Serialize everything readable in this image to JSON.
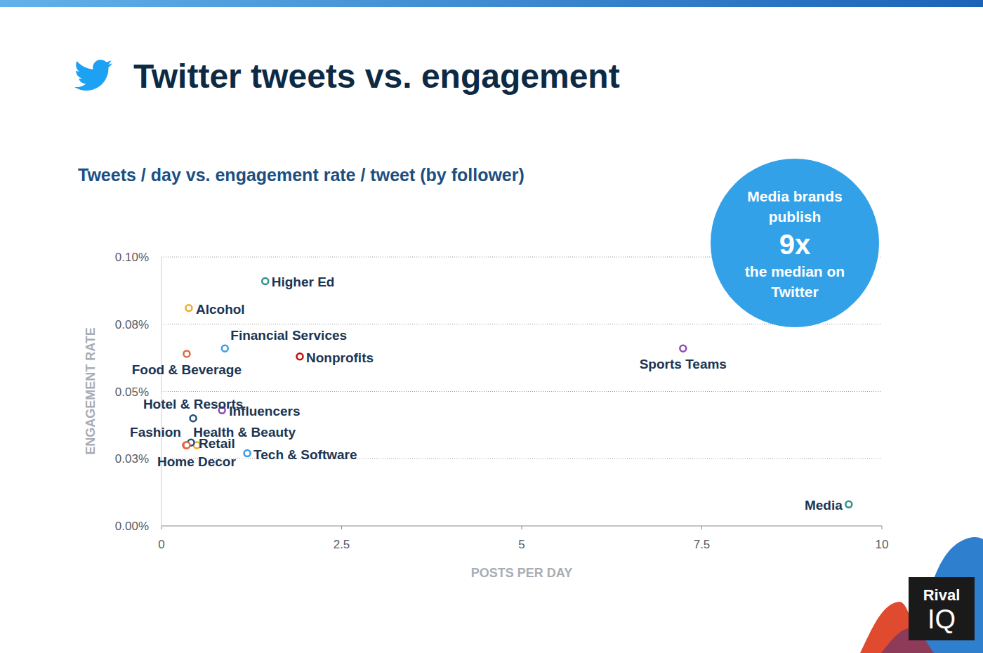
{
  "chart_data": {
    "type": "scatter",
    "title": "Twitter tweets vs. engagement",
    "subtitle": "Tweets / day vs. engagement rate / tweet (by follower)",
    "x_label": "POSTS PER DAY",
    "y_label": "ENGAGEMENT RATE",
    "annotation": [
      "Media brands",
      "publish",
      "9x",
      "the median on",
      "Twitter"
    ],
    "brand": [
      "Rival",
      "IQ"
    ],
    "marker": "circle",
    "grid": true,
    "labels": [
      "Higher Ed",
      "Alcohol",
      "Financial Services",
      "Food & Beverage",
      "Nonprofits",
      "Sports Teams",
      "Influencers",
      "Hotel & Resorts",
      "Fashion",
      "Health & Beauty",
      "Retail",
      "Home Decor",
      "Tech & Software",
      "Media"
    ],
    "x": [
      1.44,
      0.38,
      0.88,
      0.35,
      1.92,
      7.24,
      0.84,
      0.44,
      0.34,
      0.49,
      0.41,
      0.35,
      1.19,
      9.54
    ],
    "values": [
      0.091,
      0.081,
      0.066,
      0.064,
      0.063,
      0.066,
      0.043,
      0.04,
      0.03,
      0.03,
      0.031,
      0.03,
      0.027,
      0.008
    ],
    "colors": [
      "#2a9486",
      "#f2a92a",
      "#3a9be8",
      "#e0683f",
      "#c40a0a",
      "#8c4bb5",
      "#8c4bb5",
      "#1f4f7a",
      "#e0683f",
      "#f2a92a",
      "#1f4f7a",
      "#e0683f",
      "#3a9be8",
      "#2a9486"
    ],
    "xlim": [
      0,
      10
    ],
    "xticks": [
      0,
      2.5,
      5,
      7.5,
      10
    ],
    "ylim": [
      0,
      0.1
    ],
    "yticks": [
      {
        "value": 0,
        "label": "0.00%"
      },
      {
        "value": 0.025,
        "label": "0.03%"
      },
      {
        "value": 0.05,
        "label": "0.05%"
      },
      {
        "value": 0.075,
        "label": "0.08%"
      },
      {
        "value": 0.1,
        "label": "0.10%"
      }
    ]
  }
}
